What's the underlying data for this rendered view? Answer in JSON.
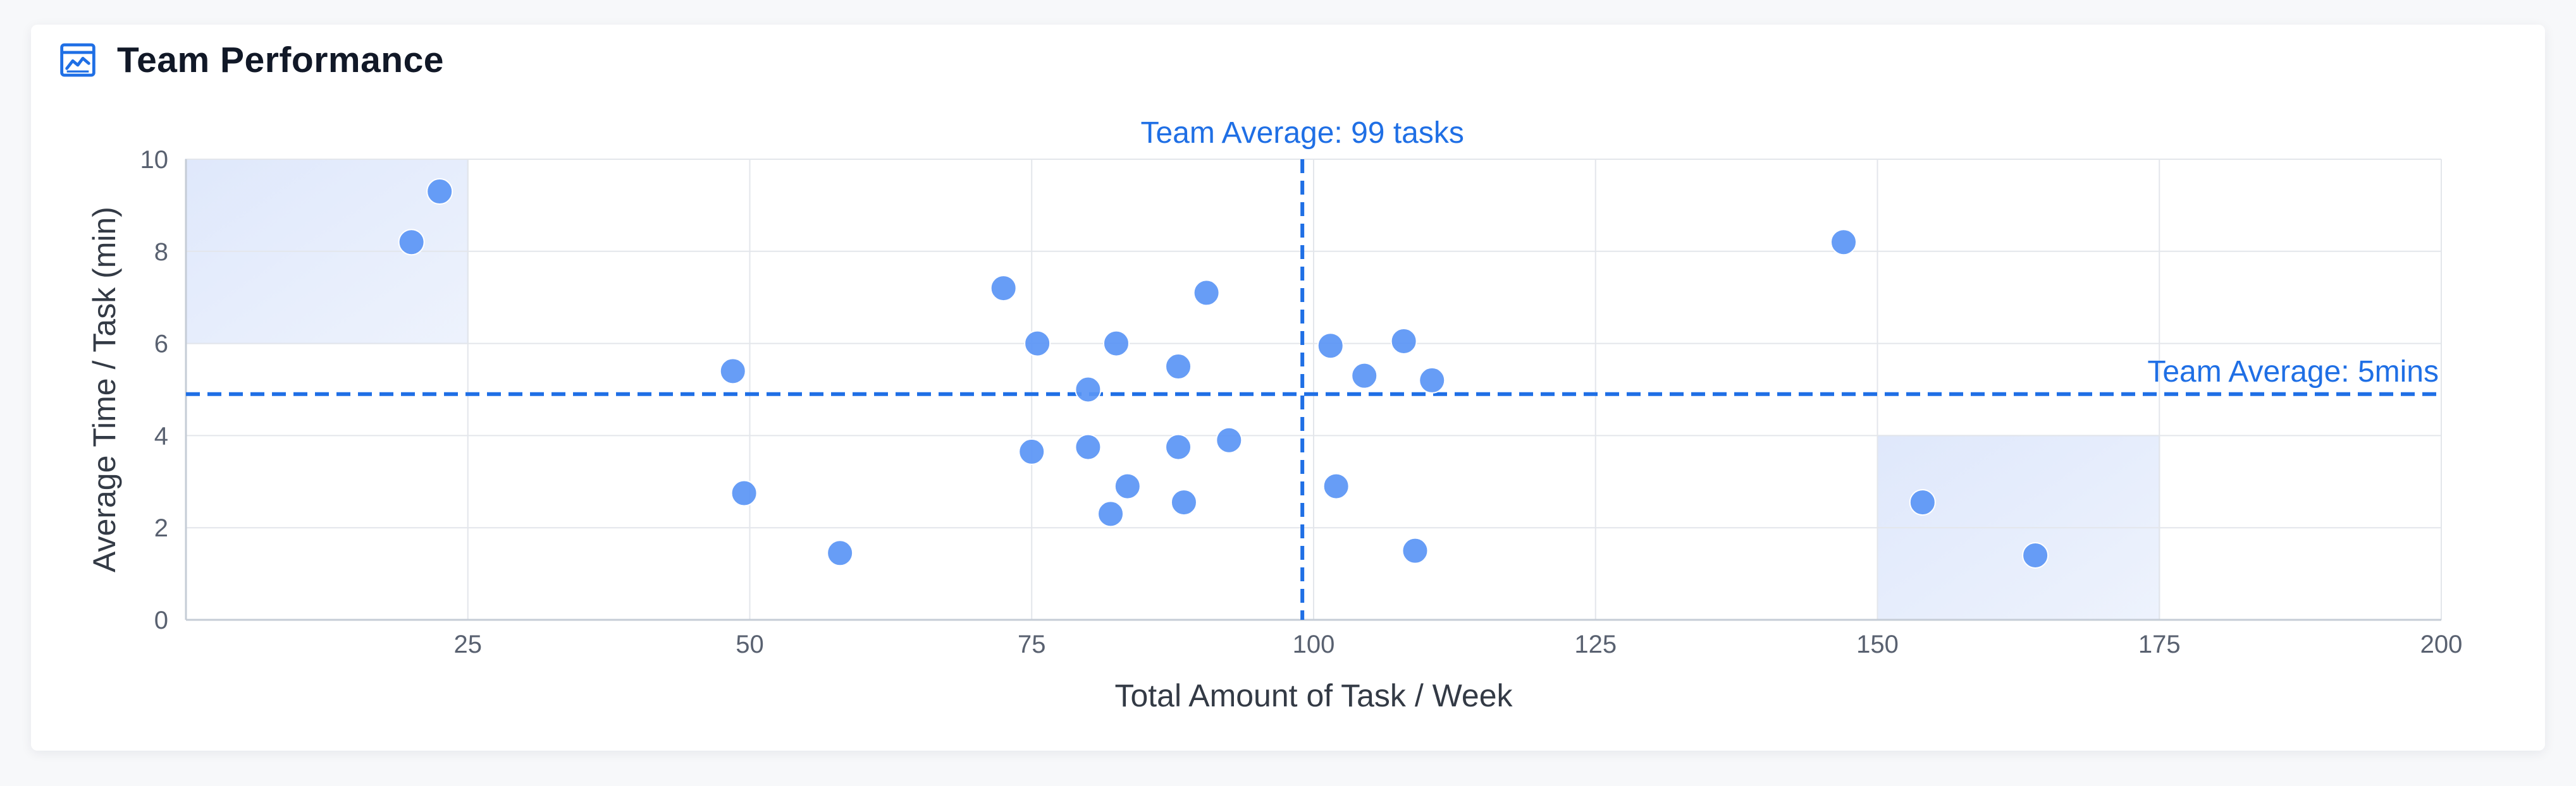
{
  "header": {
    "title": "Team Performance",
    "icon": "chart-area-icon"
  },
  "colors": {
    "accent": "#1f6fe5",
    "point": "#5a95f5",
    "grid": "#e3e6eb",
    "axis": "#c5ccd6",
    "highlight": "#dfe8fb",
    "text": "#333a45",
    "tick": "#596170"
  },
  "chart_data": {
    "type": "scatter",
    "title": "Team Performance",
    "xlabel": "Total Amount of Task / Week",
    "ylabel": "Average Time / Task (min)",
    "xlim": [
      0,
      200
    ],
    "ylim": [
      0,
      10
    ],
    "x_ticks": [
      "25",
      "50",
      "75",
      "100",
      "125",
      "150",
      "175",
      "200"
    ],
    "y_ticks": [
      "0",
      "2",
      "4",
      "6",
      "8",
      "10"
    ],
    "grid": true,
    "series": [
      {
        "points": [
          {
            "x": 22.5,
            "y": 9.3
          },
          {
            "x": 20,
            "y": 8.2
          },
          {
            "x": 48.5,
            "y": 5.4
          },
          {
            "x": 49.5,
            "y": 2.75
          },
          {
            "x": 58,
            "y": 1.45
          },
          {
            "x": 72.5,
            "y": 7.2
          },
          {
            "x": 75.5,
            "y": 6.0
          },
          {
            "x": 75,
            "y": 3.65
          },
          {
            "x": 80,
            "y": 5.0
          },
          {
            "x": 80,
            "y": 3.75
          },
          {
            "x": 82.5,
            "y": 6.0
          },
          {
            "x": 82,
            "y": 2.3
          },
          {
            "x": 83.5,
            "y": 2.9
          },
          {
            "x": 88,
            "y": 5.5
          },
          {
            "x": 88,
            "y": 3.75
          },
          {
            "x": 88.5,
            "y": 2.55
          },
          {
            "x": 90.5,
            "y": 7.1
          },
          {
            "x": 92.5,
            "y": 3.9
          },
          {
            "x": 101.5,
            "y": 5.95
          },
          {
            "x": 102,
            "y": 2.9
          },
          {
            "x": 104.5,
            "y": 5.3
          },
          {
            "x": 108,
            "y": 6.05
          },
          {
            "x": 109,
            "y": 1.5
          },
          {
            "x": 110.5,
            "y": 5.2
          },
          {
            "x": 147,
            "y": 8.2
          },
          {
            "x": 154,
            "y": 2.55
          },
          {
            "x": 164,
            "y": 1.4
          }
        ]
      }
    ],
    "reference_lines": [
      {
        "axis": "x",
        "value": 99,
        "label": "Team Average: 99 tasks"
      },
      {
        "axis": "y",
        "value": 4.9,
        "label": "Team Average: 5mins"
      }
    ],
    "highlight_regions": [
      {
        "x": [
          0,
          25
        ],
        "y": [
          6,
          10
        ]
      },
      {
        "x": [
          150,
          175
        ],
        "y": [
          0,
          4
        ]
      }
    ]
  }
}
